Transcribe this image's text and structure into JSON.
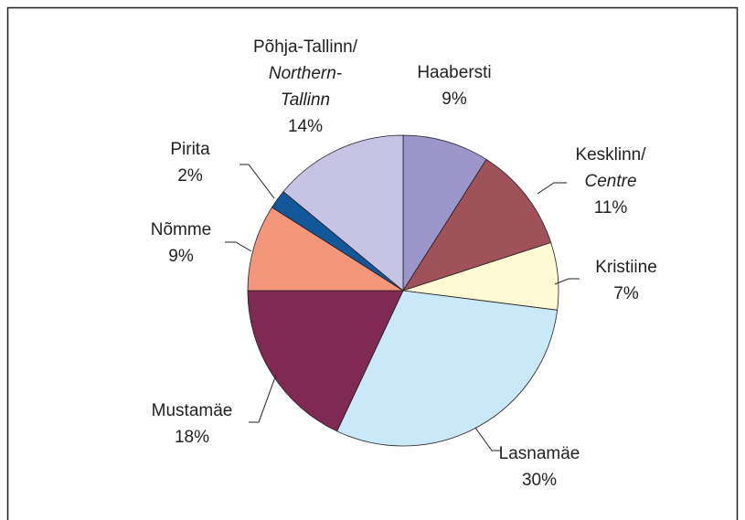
{
  "chart_data": {
    "type": "pie",
    "categories": [
      "Haabersti",
      "Kesklinn/",
      "Kristiine",
      "Lasnamäe",
      "Mustamäe",
      "Nõmme",
      "Pirita",
      "Põhja-Tallinn/"
    ],
    "translations": [
      null,
      "Centre",
      null,
      null,
      null,
      null,
      null,
      "Northern-Tallinn"
    ],
    "values": [
      9,
      11,
      7,
      30,
      18,
      9,
      2,
      14
    ],
    "value_labels": [
      "9%",
      "11%",
      "7%",
      "30%",
      "18%",
      "9%",
      "2%",
      "14%"
    ],
    "colors": [
      "#9b95c9",
      "#a0525a",
      "#fff9d4",
      "#c9e9f9",
      "#7f2953",
      "#f4967a",
      "#13579b",
      "#c7c3e4"
    ]
  }
}
